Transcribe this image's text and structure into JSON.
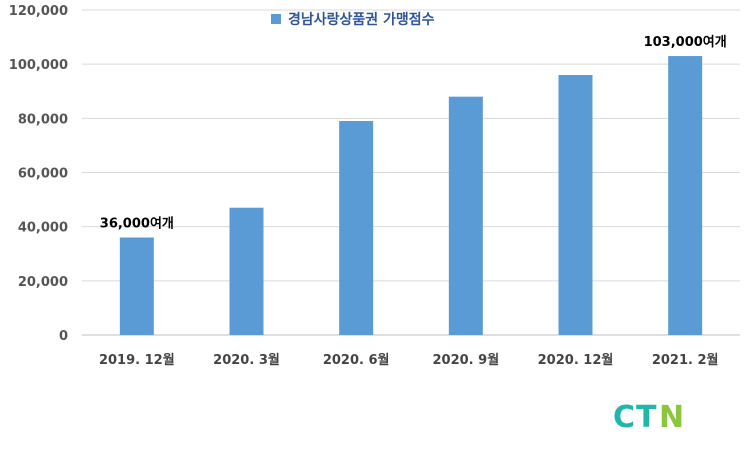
{
  "chart_data": {
    "type": "bar",
    "categories": [
      "2019. 12월",
      "2020. 3월",
      "2020. 6월",
      "2020. 9월",
      "2020. 12월",
      "2021. 2월"
    ],
    "series": [
      {
        "name": "경남사랑상품권 가맹점수",
        "values": [
          36000,
          47000,
          79000,
          88000,
          96000,
          103000
        ],
        "color": "#5b9bd5"
      }
    ],
    "data_labels": [
      {
        "category_index": 0,
        "text": "36,000여개"
      },
      {
        "category_index": 5,
        "text": "103,000여개"
      }
    ],
    "ylim": [
      0,
      120000
    ],
    "yticks": [
      0,
      20000,
      40000,
      60000,
      80000,
      100000,
      120000
    ],
    "ytick_labels": [
      "0",
      "20,000",
      "40,000",
      "60,000",
      "80,000",
      "100,000",
      "120,000"
    ],
    "grid": true,
    "legend_position": "top"
  },
  "logo": {
    "text": "CTN",
    "colors": {
      "C": "#1fb8a8",
      "T": "#1fb8a8",
      "N": "#8cc63f"
    }
  }
}
